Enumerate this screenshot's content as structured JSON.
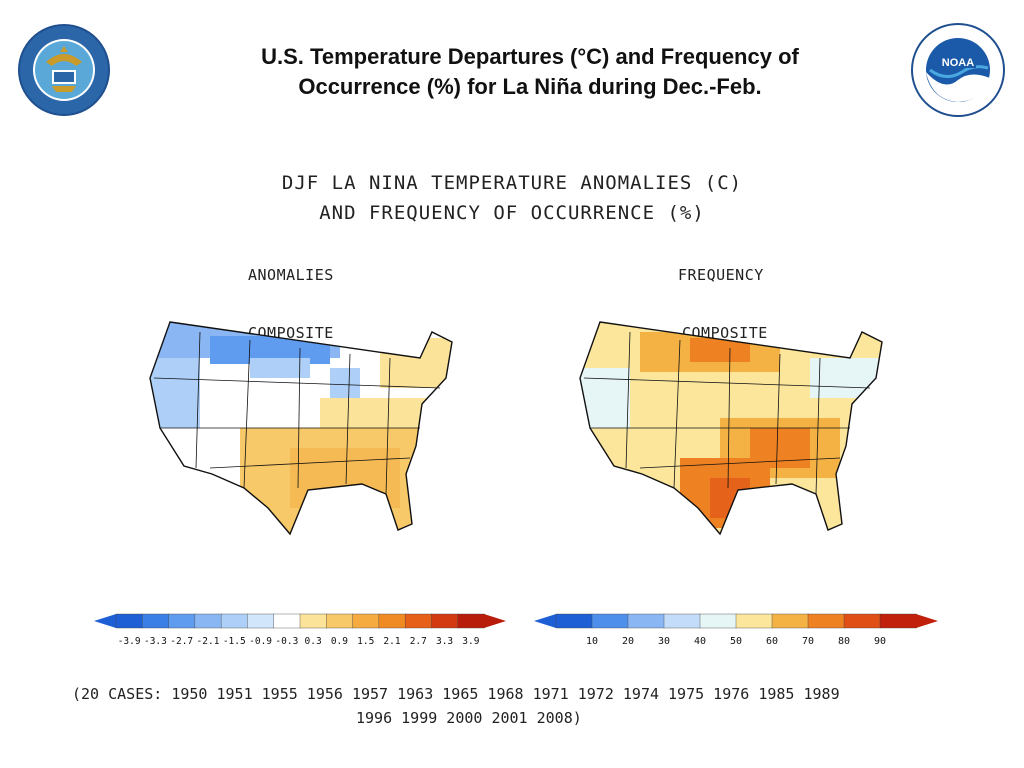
{
  "slide": {
    "title_line1": "U.S. Temperature Departures (°C) and Frequency of",
    "title_line2": "Occurrence (%) for La Niña during Dec.-Feb."
  },
  "logos": {
    "left": {
      "icon": "department-of-commerce-seal",
      "text": "DEPARTMENT OF COMMERCE · UNITED STATES OF AMERICA"
    },
    "right": {
      "icon": "noaa-logo",
      "text": "NATIONAL OCEANIC AND ATMOSPHERIC ADMINISTRATION · U.S. DEPARTMENT OF COMMERCE",
      "mark": "NOAA"
    }
  },
  "figure": {
    "title_line1": "DJF LA NINA TEMPERATURE ANOMALIES (C)",
    "title_line2": "AND FREQUENCY OF OCCURRENCE (%)",
    "left_panel": {
      "label": "ANOMALIES",
      "sublabel": "COMPOSITE"
    },
    "right_panel": {
      "label": "FREQUENCY",
      "sublabel": "COMPOSITE"
    }
  },
  "legend_anomaly": {
    "ticks": [
      "-3.9",
      "-3.3",
      "-2.7",
      "-2.1",
      "-1.5",
      "-0.9",
      "-0.3",
      "0.3",
      "0.9",
      "1.5",
      "2.1",
      "2.7",
      "3.3",
      "3.9"
    ],
    "colors": [
      "#1e5fd6",
      "#3a7fe6",
      "#5f9bef",
      "#8ab7f4",
      "#aed0f8",
      "#d2e6fb",
      "#ffffff",
      "#fbe39a",
      "#f7c968",
      "#f5ab3f",
      "#f08a23",
      "#e6601a",
      "#d43a12",
      "#b81d0c"
    ]
  },
  "legend_frequency": {
    "ticks": [
      "10",
      "20",
      "30",
      "40",
      "50",
      "60",
      "70",
      "80",
      "90"
    ],
    "colors": [
      "#1e5fd6",
      "#4d8feb",
      "#8ab7f4",
      "#c3dcf9",
      "#e6f5f5",
      "#fbe69c",
      "#f5b244",
      "#ee8122",
      "#df4f16",
      "#c0200c"
    ]
  },
  "cases": {
    "line1": "(20 CASES:  1950 1951 1955 1956 1957 1963 1965 1968 1971 1972 1974 1975 1976 1985 1989",
    "line2": "1996 1999 2000 2001 2008)"
  }
}
